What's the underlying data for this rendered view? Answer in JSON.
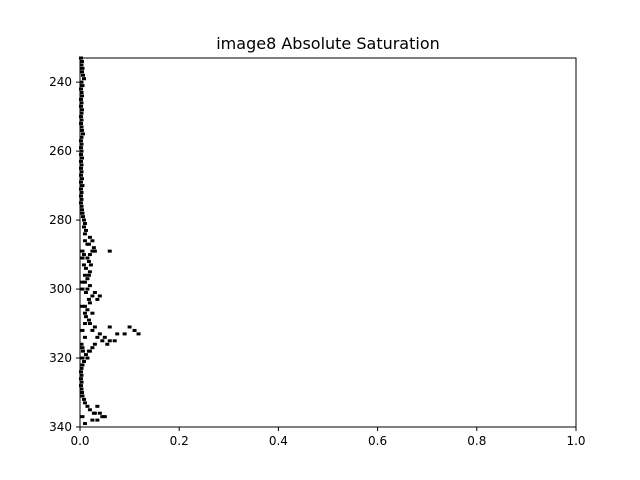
{
  "chart_data": {
    "type": "scatter",
    "title": "image8 Absolute Saturation",
    "xlabel": "",
    "ylabel": "",
    "xlim": [
      0,
      1
    ],
    "ylim": [
      340,
      233
    ],
    "y_inverted": true,
    "grid": false,
    "legend": "none",
    "marker_color": "#000000",
    "x_ticks": [
      {
        "value": 0.0,
        "label": "0.0"
      },
      {
        "value": 0.2,
        "label": "0.2"
      },
      {
        "value": 0.4,
        "label": "0.4"
      },
      {
        "value": 0.6,
        "label": "0.6"
      },
      {
        "value": 0.8,
        "label": "0.8"
      },
      {
        "value": 1.0,
        "label": "1.0"
      }
    ],
    "y_ticks": [
      {
        "value": 240,
        "label": "240"
      },
      {
        "value": 260,
        "label": "260"
      },
      {
        "value": 280,
        "label": "280"
      },
      {
        "value": 300,
        "label": "300"
      },
      {
        "value": 320,
        "label": "320"
      },
      {
        "value": 340,
        "label": "340"
      }
    ],
    "series": [
      {
        "points": [
          [
            0.002,
            233
          ],
          [
            0.004,
            234
          ],
          [
            0.003,
            235
          ],
          [
            0.005,
            236
          ],
          [
            0.004,
            237
          ],
          [
            0.006,
            238
          ],
          [
            0.008,
            239
          ],
          [
            0.003,
            240
          ],
          [
            0.005,
            241
          ],
          [
            0.002,
            242
          ],
          [
            0.003,
            243
          ],
          [
            0.004,
            244
          ],
          [
            0.002,
            245
          ],
          [
            0.003,
            246
          ],
          [
            0.002,
            247
          ],
          [
            0.004,
            248
          ],
          [
            0.003,
            249
          ],
          [
            0.002,
            250
          ],
          [
            0.003,
            251
          ],
          [
            0.002,
            252
          ],
          [
            0.003,
            253
          ],
          [
            0.004,
            254
          ],
          [
            0.006,
            255
          ],
          [
            0.003,
            256
          ],
          [
            0.002,
            257
          ],
          [
            0.003,
            258
          ],
          [
            0.002,
            259
          ],
          [
            0.003,
            260
          ],
          [
            0.002,
            261
          ],
          [
            0.004,
            262
          ],
          [
            0.002,
            263
          ],
          [
            0.003,
            264
          ],
          [
            0.002,
            265
          ],
          [
            0.003,
            266
          ],
          [
            0.002,
            267
          ],
          [
            0.004,
            268
          ],
          [
            0.002,
            269
          ],
          [
            0.005,
            270
          ],
          [
            0.002,
            271
          ],
          [
            0.003,
            272
          ],
          [
            0.002,
            273
          ],
          [
            0.003,
            274
          ],
          [
            0.002,
            275
          ],
          [
            0.003,
            276
          ],
          [
            0.004,
            277
          ],
          [
            0.005,
            278
          ],
          [
            0.006,
            279
          ],
          [
            0.008,
            280
          ],
          [
            0.01,
            281
          ],
          [
            0.008,
            282
          ],
          [
            0.012,
            283
          ],
          [
            0.01,
            284
          ],
          [
            0.02,
            285
          ],
          [
            0.025,
            286
          ],
          [
            0.018,
            287
          ],
          [
            0.028,
            288
          ],
          [
            0.03,
            289
          ],
          [
            0.02,
            290
          ],
          [
            0.015,
            291
          ],
          [
            0.018,
            292
          ],
          [
            0.022,
            293
          ],
          [
            0.012,
            294
          ],
          [
            0.02,
            295
          ],
          [
            0.018,
            296
          ],
          [
            0.015,
            297
          ],
          [
            0.01,
            298
          ],
          [
            0.02,
            299
          ],
          [
            0.015,
            300
          ],
          [
            0.012,
            301
          ],
          [
            0.025,
            302
          ],
          [
            0.018,
            303
          ],
          [
            0.02,
            304
          ],
          [
            0.01,
            305
          ],
          [
            0.015,
            306
          ],
          [
            0.025,
            307
          ],
          [
            0.012,
            308
          ],
          [
            0.018,
            309
          ],
          [
            0.02,
            310
          ],
          [
            0.03,
            311
          ],
          [
            0.025,
            312
          ],
          [
            0.04,
            313
          ],
          [
            0.035,
            314
          ],
          [
            0.045,
            315
          ],
          [
            0.03,
            316
          ],
          [
            0.025,
            317
          ],
          [
            0.018,
            318
          ],
          [
            0.012,
            319
          ],
          [
            0.015,
            320
          ],
          [
            0.008,
            321
          ],
          [
            0.005,
            322
          ],
          [
            0.003,
            323
          ],
          [
            0.002,
            324
          ],
          [
            0.003,
            325
          ],
          [
            0.002,
            326
          ],
          [
            0.003,
            327
          ],
          [
            0.002,
            328
          ],
          [
            0.003,
            329
          ],
          [
            0.004,
            330
          ],
          [
            0.005,
            331
          ],
          [
            0.008,
            332
          ],
          [
            0.01,
            333
          ],
          [
            0.015,
            334
          ],
          [
            0.02,
            335
          ],
          [
            0.03,
            336
          ],
          [
            0.045,
            337
          ],
          [
            0.025,
            338
          ],
          [
            0.01,
            339
          ],
          [
            0.01,
            286
          ],
          [
            0.015,
            287
          ],
          [
            0.005,
            289
          ],
          [
            0.008,
            290
          ],
          [
            0.025,
            289
          ],
          [
            0.06,
            289
          ],
          [
            0.005,
            291
          ],
          [
            0.008,
            293
          ],
          [
            0.01,
            296
          ],
          [
            0.005,
            298
          ],
          [
            0.03,
            301
          ],
          [
            0.04,
            302
          ],
          [
            0.035,
            303
          ],
          [
            0.005,
            305
          ],
          [
            0.01,
            310
          ],
          [
            0.06,
            311
          ],
          [
            0.1,
            311
          ],
          [
            0.11,
            312
          ],
          [
            0.075,
            313
          ],
          [
            0.09,
            313
          ],
          [
            0.118,
            313
          ],
          [
            0.05,
            314
          ],
          [
            0.06,
            315
          ],
          [
            0.07,
            315
          ],
          [
            0.055,
            316
          ],
          [
            0.005,
            317
          ],
          [
            0.02,
            318
          ],
          [
            0.005,
            320
          ],
          [
            0.035,
            334
          ],
          [
            0.028,
            336
          ],
          [
            0.04,
            336
          ],
          [
            0.05,
            337
          ],
          [
            0.005,
            337
          ],
          [
            0.035,
            338
          ],
          [
            0.005,
            300
          ],
          [
            0.01,
            307
          ],
          [
            0.005,
            312
          ],
          [
            0.01,
            314
          ],
          [
            0.003,
            316
          ],
          [
            0.006,
            318
          ]
        ]
      }
    ]
  }
}
